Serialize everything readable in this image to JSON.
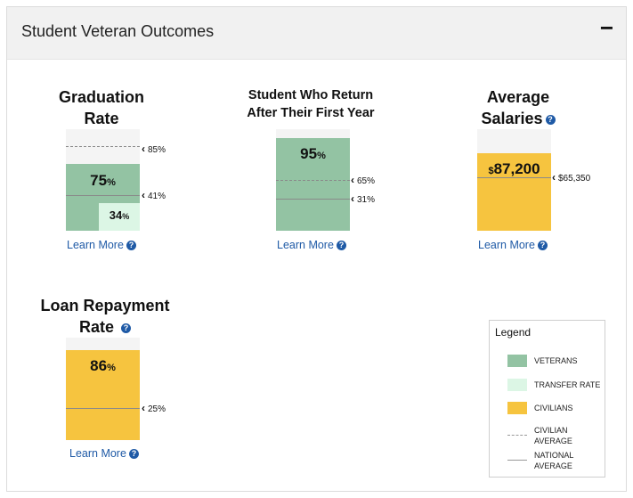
{
  "header": {
    "title": "Student Veteran Outcomes",
    "collapse_label": "−"
  },
  "help_icon": "?",
  "colors": {
    "veterans": "#93c3a3",
    "transfer": "#dcf6e5",
    "civilians": "#f6c43f"
  },
  "graduation": {
    "title_line1": "Graduation",
    "title_line2": "Rate",
    "value_num": "75",
    "value_unit": "%",
    "value_fraction": 0.75,
    "transfer_num": "34",
    "transfer_unit": "%",
    "transfer_fraction": 0.34,
    "civilian_avg_label": "85%",
    "national_avg_label": "41%",
    "learn_more": "Learn More"
  },
  "retention": {
    "title_line1": "Student Who Return",
    "title_line2": "After Their First Year",
    "value_num": "95",
    "value_unit": "%",
    "value_fraction": 0.95,
    "civilian_avg_label": "65%",
    "national_avg_label": "31%",
    "learn_more": "Learn More"
  },
  "salaries": {
    "title_line1": "Average",
    "title_line2": "Salaries",
    "value_prefix": "$",
    "value_num": "87,200",
    "national_avg_label": "$65,350",
    "learn_more": "Learn More"
  },
  "loan": {
    "title_line1": "Loan Repayment",
    "title_line2": "Rate",
    "value_num": "86",
    "value_unit": "%",
    "value_fraction": 0.86,
    "national_avg_label": "25%"
  },
  "loan_learn_more": "Learn More",
  "legend": {
    "title": "Legend",
    "veterans": "VETERANS",
    "transfer": "TRANSFER RATE",
    "civilians": "CIVILIANS",
    "civilian_avg_1": "CIVILIAN",
    "civilian_avg_2": "AVERAGE",
    "national_avg_1": "NATIONAL",
    "national_avg_2": "AVERAGE"
  }
}
